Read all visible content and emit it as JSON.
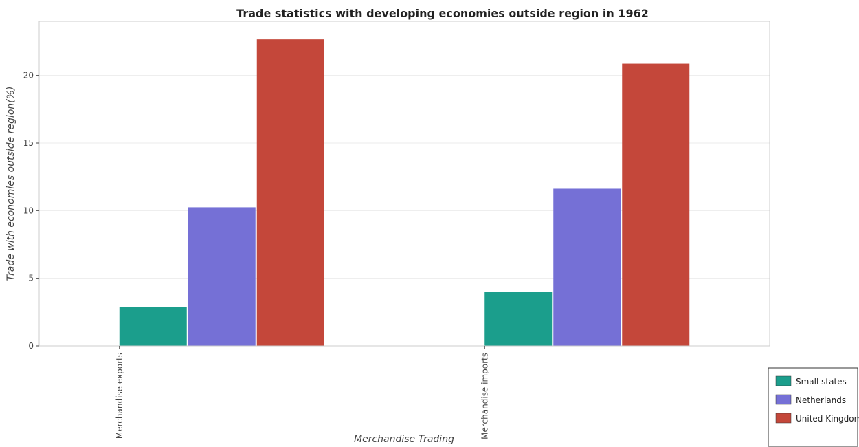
{
  "chart_data": {
    "type": "bar",
    "title": "Trade statistics with developing economies outside region in 1962",
    "xlabel": "Merchandise Trading",
    "ylabel": "Trade with economies outside region(%)",
    "categories": [
      "Merchandise exports",
      "Merchandise imports"
    ],
    "series": [
      {
        "name": "Small states",
        "color": "#1b9e8c",
        "values": [
          2.85,
          4.0
        ]
      },
      {
        "name": "Netherlands",
        "color": "#7570d6",
        "values": [
          10.25,
          11.62
        ]
      },
      {
        "name": "United Kingdom",
        "color": "#c4473a",
        "values": [
          22.67,
          20.87
        ]
      }
    ],
    "ylim": [
      0,
      24
    ],
    "yticks": [
      0,
      5,
      10,
      15,
      20
    ],
    "grid": true,
    "legend_position": "bottom-right"
  }
}
